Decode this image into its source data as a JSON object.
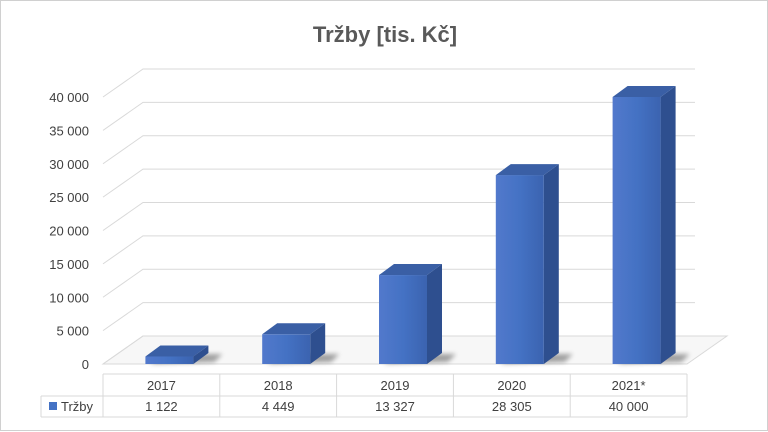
{
  "chart_data": {
    "type": "bar",
    "title": "Tržby [tis. Kč]",
    "categories": [
      "2017",
      "2018",
      "2019",
      "2020",
      "2021*"
    ],
    "series": [
      {
        "name": "Tržby",
        "values": [
          1122,
          4449,
          13327,
          28305,
          40000
        ],
        "value_labels": [
          "1 122",
          "4 449",
          "13 327",
          "28 305",
          "40 000"
        ],
        "color": "#4472C4"
      }
    ],
    "y_tick_labels": [
      "0",
      "5 000",
      "10 000",
      "15 000",
      "20 000",
      "25 000",
      "30 000",
      "35 000",
      "40 000"
    ],
    "ylim": [
      0,
      40000
    ],
    "grid": true,
    "legend": "data-table",
    "style": "3d-column"
  }
}
